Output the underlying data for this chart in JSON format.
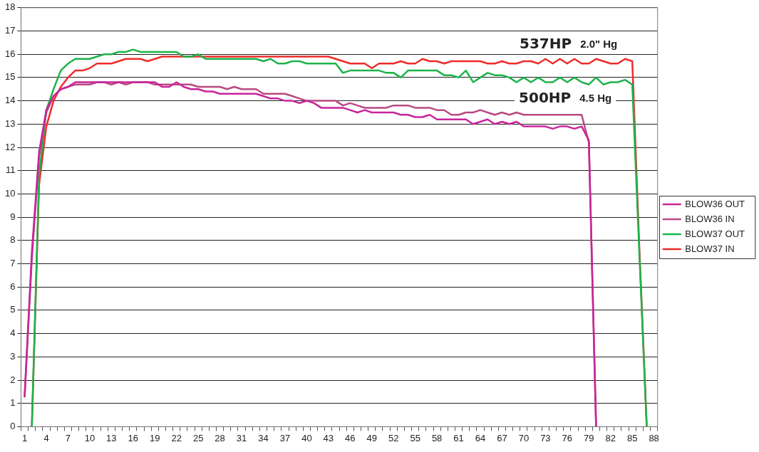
{
  "chart_data": {
    "type": "line",
    "categories": [
      "1",
      null,
      null,
      "4",
      null,
      null,
      "7",
      null,
      null,
      "10",
      null,
      null,
      "13",
      null,
      null,
      "16",
      null,
      null,
      "19",
      null,
      null,
      "22",
      null,
      null,
      "25",
      null,
      null,
      "28",
      null,
      null,
      "31",
      null,
      null,
      "34",
      null,
      null,
      "37",
      null,
      null,
      "40",
      null,
      null,
      "43",
      null,
      null,
      "46",
      null,
      null,
      "49",
      null,
      null,
      "52",
      null,
      null,
      "55",
      null,
      null,
      "58",
      null,
      null,
      "61",
      null,
      null,
      "64",
      null,
      null,
      "67",
      null,
      null,
      "70",
      null,
      null,
      "73",
      null,
      null,
      "76",
      null,
      null,
      "79",
      null,
      null,
      "82",
      null,
      null,
      "85",
      null,
      null,
      "88"
    ],
    "series": [
      {
        "name": "BLOW36 OUT",
        "color": "#c8249a",
        "values": [
          1.3,
          7.5,
          11.8,
          13.6,
          14.2,
          14.5,
          14.6,
          14.8,
          14.8,
          14.8,
          14.8,
          14.8,
          14.8,
          14.8,
          14.8,
          14.8,
          14.8,
          14.8,
          14.8,
          14.6,
          14.6,
          14.8,
          14.6,
          14.5,
          14.5,
          14.4,
          14.4,
          14.3,
          14.3,
          14.3,
          14.3,
          14.3,
          14.3,
          14.2,
          14.1,
          14.1,
          14.0,
          14.0,
          13.9,
          14.0,
          13.9,
          13.7,
          13.7,
          13.7,
          13.7,
          13.6,
          13.5,
          13.6,
          13.5,
          13.5,
          13.5,
          13.5,
          13.4,
          13.4,
          13.3,
          13.3,
          13.4,
          13.2,
          13.2,
          13.2,
          13.2,
          13.2,
          13.0,
          13.1,
          13.2,
          13.0,
          13.1,
          13.0,
          13.1,
          12.9,
          12.9,
          12.9,
          12.9,
          12.8,
          12.9,
          12.9,
          12.8,
          12.9,
          12.3,
          0,
          null,
          null,
          null,
          null,
          null,
          null,
          null,
          null
        ]
      },
      {
        "name": "BLOW36 IN",
        "color": "#b84a82",
        "values": [
          1.3,
          7.2,
          11.6,
          13.5,
          14.2,
          14.5,
          14.6,
          14.7,
          14.7,
          14.7,
          14.8,
          14.8,
          14.7,
          14.8,
          14.7,
          14.8,
          14.8,
          14.8,
          14.7,
          14.7,
          14.7,
          14.7,
          14.7,
          14.7,
          14.6,
          14.6,
          14.6,
          14.6,
          14.5,
          14.6,
          14.5,
          14.5,
          14.5,
          14.3,
          14.3,
          14.3,
          14.3,
          14.2,
          14.1,
          14.0,
          14.0,
          14.0,
          14.0,
          14.0,
          13.8,
          13.9,
          13.8,
          13.7,
          13.7,
          13.7,
          13.7,
          13.8,
          13.8,
          13.8,
          13.7,
          13.7,
          13.7,
          13.6,
          13.6,
          13.4,
          13.4,
          13.5,
          13.5,
          13.6,
          13.5,
          13.4,
          13.5,
          13.4,
          13.5,
          13.4,
          13.4,
          13.4,
          13.4,
          13.4,
          13.4,
          13.4,
          13.4,
          13.4,
          12.2,
          0,
          null,
          null,
          null,
          null,
          null,
          null,
          null,
          null
        ]
      },
      {
        "name": "BLOW37 OUT",
        "color": "#1db34a",
        "values": [
          null,
          0,
          10.8,
          13.6,
          14.5,
          15.3,
          15.6,
          15.8,
          15.8,
          15.8,
          15.9,
          16.0,
          16.0,
          16.1,
          16.1,
          16.2,
          16.1,
          16.1,
          16.1,
          16.1,
          16.1,
          16.1,
          15.9,
          15.9,
          16.0,
          15.8,
          15.8,
          15.8,
          15.8,
          15.8,
          15.8,
          15.8,
          15.8,
          15.7,
          15.8,
          15.6,
          15.6,
          15.7,
          15.7,
          15.6,
          15.6,
          15.6,
          15.6,
          15.6,
          15.2,
          15.3,
          15.3,
          15.3,
          15.3,
          15.3,
          15.2,
          15.2,
          15.0,
          15.3,
          15.3,
          15.3,
          15.3,
          15.3,
          15.1,
          15.1,
          15.0,
          15.3,
          14.8,
          15.0,
          15.2,
          15.1,
          15.1,
          15.0,
          14.8,
          15.0,
          14.8,
          15.0,
          14.8,
          14.8,
          15.0,
          14.8,
          15.0,
          14.8,
          14.7,
          15.0,
          14.7,
          14.8,
          14.8,
          14.9,
          14.7,
          7.3,
          0,
          null
        ]
      },
      {
        "name": "BLOW37 IN",
        "color": "#ee2b2b",
        "values": [
          null,
          0,
          10.4,
          12.9,
          14.0,
          14.6,
          15.0,
          15.3,
          15.3,
          15.4,
          15.6,
          15.6,
          15.6,
          15.7,
          15.8,
          15.8,
          15.8,
          15.7,
          15.8,
          15.9,
          15.9,
          15.9,
          15.9,
          15.9,
          15.9,
          15.9,
          15.9,
          15.9,
          15.9,
          15.9,
          15.9,
          15.9,
          15.9,
          15.9,
          15.9,
          15.9,
          15.9,
          15.9,
          15.9,
          15.9,
          15.9,
          15.9,
          15.9,
          15.8,
          15.7,
          15.6,
          15.6,
          15.6,
          15.4,
          15.6,
          15.6,
          15.6,
          15.7,
          15.6,
          15.6,
          15.8,
          15.7,
          15.7,
          15.6,
          15.7,
          15.7,
          15.7,
          15.7,
          15.7,
          15.6,
          15.6,
          15.7,
          15.6,
          15.6,
          15.7,
          15.7,
          15.6,
          15.8,
          15.6,
          15.8,
          15.6,
          15.8,
          15.6,
          15.6,
          15.8,
          15.7,
          15.6,
          15.6,
          15.8,
          15.7,
          7.5,
          0,
          null
        ]
      }
    ],
    "ylim": [
      0,
      18
    ],
    "yticks": [
      0,
      1,
      2,
      3,
      4,
      5,
      6,
      7,
      8,
      9,
      10,
      11,
      12,
      13,
      14,
      15,
      16,
      17,
      18
    ],
    "grid": "y",
    "legend": "right",
    "marker": "none",
    "line_style": "solid",
    "annotations": [
      "537HP 2.0\" Hg",
      "500HP 4.5 Hg"
    ]
  }
}
